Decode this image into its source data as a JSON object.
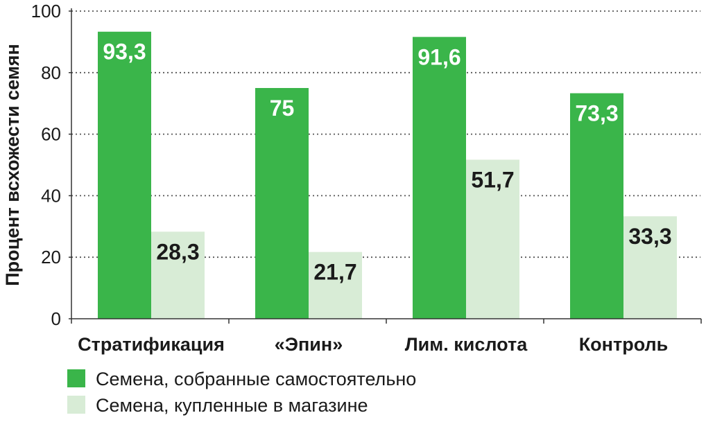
{
  "chart_data": {
    "type": "bar",
    "title": "",
    "xlabel": "",
    "ylabel": "Процент всхожести семян",
    "ylim": [
      0,
      100
    ],
    "yticks": [
      0,
      20,
      40,
      60,
      80,
      100
    ],
    "grid": "horizontal dotted",
    "legend_position": "bottom",
    "categories": [
      "Стратификация",
      "«Эпин»",
      "Лим. кислота",
      "Контроль"
    ],
    "series": [
      {
        "name": "Семена, собранные самостоятельно",
        "color": "#3ab54a",
        "label_color": "#ffffff",
        "values": [
          93.3,
          75,
          91.6,
          73.3
        ],
        "value_labels": [
          "93,3",
          "75",
          "91,6",
          "73,3"
        ]
      },
      {
        "name": "Семена, купленные в магазине",
        "color": "#d8ecd6",
        "label_color": "#1a1a1a",
        "values": [
          28.3,
          21.7,
          51.7,
          33.3
        ],
        "value_labels": [
          "28,3",
          "21,7",
          "51,7",
          "33,3"
        ]
      }
    ]
  }
}
